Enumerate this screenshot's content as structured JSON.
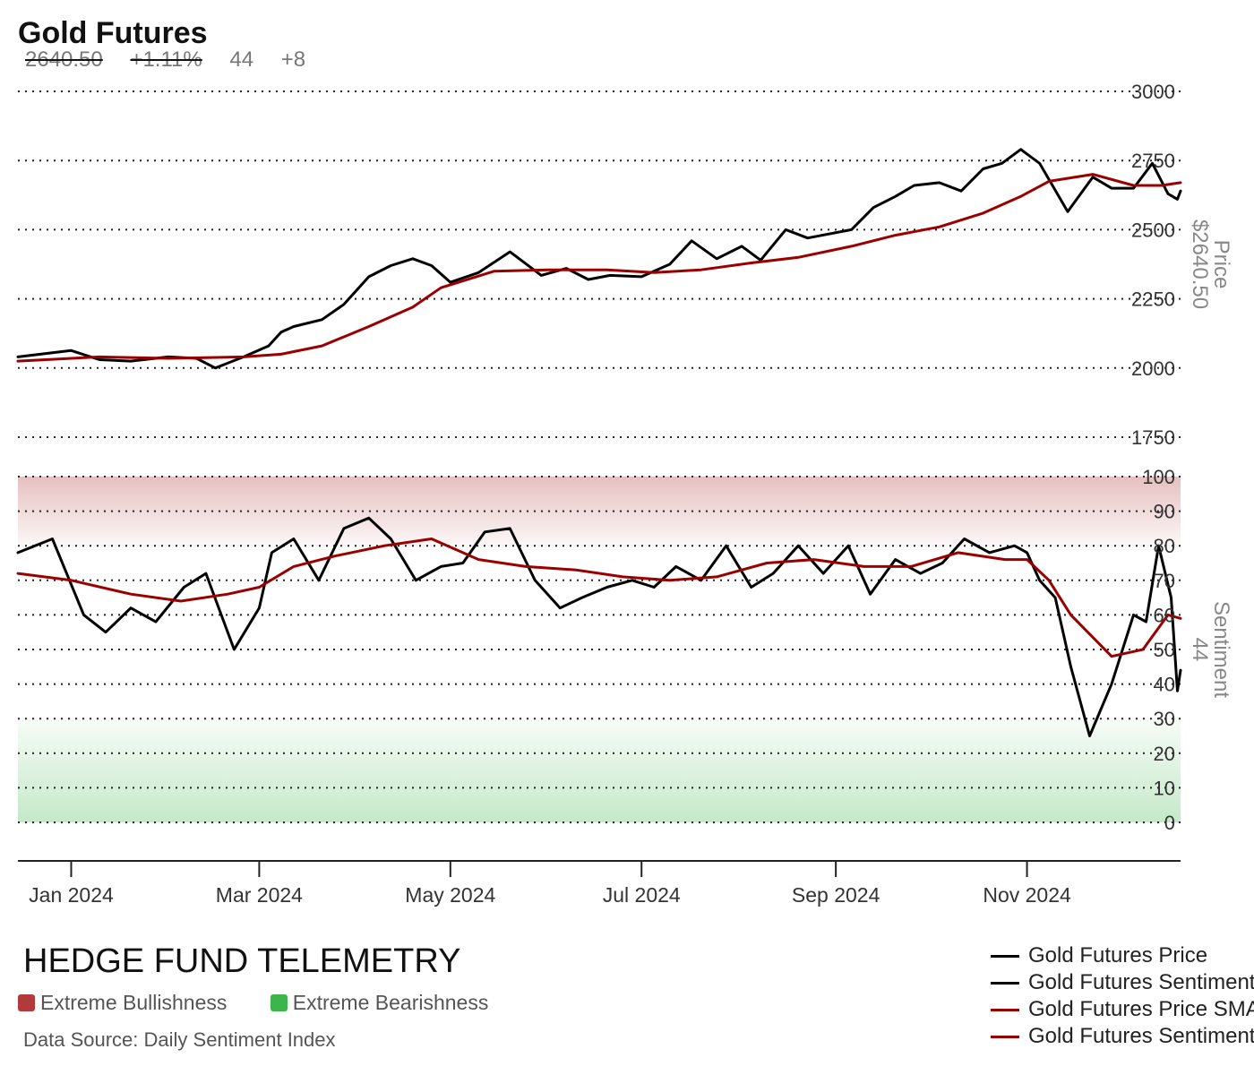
{
  "header": {
    "title": "Gold Futures",
    "price": "2640.50",
    "change_pct": "+1.11%",
    "sentiment": "44",
    "sentiment_change": "+8"
  },
  "footer": {
    "brand": "HEDGE FUND TELEMETRY",
    "bull_label": "Extreme Bullishness",
    "bear_label": "Extreme Bearishness",
    "source": "Data Source: Daily Sentiment Index",
    "bull_color": "#b33a3a",
    "bear_color": "#3cb54a"
  },
  "legend": [
    {
      "name": "Gold Futures Price",
      "color": "#000000"
    },
    {
      "name": "Gold Futures Sentiment",
      "color": "#000000"
    },
    {
      "name": "Gold Futures Price SMA",
      "color": "#9b0000"
    },
    {
      "name": "Gold Futures Sentiment SMA",
      "color": "#9b0000"
    }
  ],
  "chart_data": [
    {
      "type": "line",
      "name": "price-panel",
      "ylabel": "Price",
      "current_value_label": "$2640.50",
      "ylim": [
        1750,
        3000
      ],
      "yticks": [
        3000,
        2750,
        2500,
        2250,
        2000,
        1750
      ],
      "x_range": [
        "2023-12-15",
        "2024-12-20"
      ],
      "grid": true,
      "series": [
        {
          "name": "Gold Futures Price",
          "color": "#000000",
          "x": [
            "2023-12-15",
            "2024-01-01",
            "2024-01-10",
            "2024-01-20",
            "2024-02-01",
            "2024-02-10",
            "2024-02-16",
            "2024-02-25",
            "2024-03-04",
            "2024-03-08",
            "2024-03-12",
            "2024-03-21",
            "2024-03-28",
            "2024-04-05",
            "2024-04-12",
            "2024-04-19",
            "2024-04-25",
            "2024-05-01",
            "2024-05-10",
            "2024-05-20",
            "2024-05-30",
            "2024-06-07",
            "2024-06-14",
            "2024-06-21",
            "2024-07-01",
            "2024-07-10",
            "2024-07-17",
            "2024-07-25",
            "2024-08-02",
            "2024-08-08",
            "2024-08-16",
            "2024-08-23",
            "2024-09-06",
            "2024-09-13",
            "2024-09-20",
            "2024-09-26",
            "2024-10-04",
            "2024-10-11",
            "2024-10-18",
            "2024-10-24",
            "2024-10-30",
            "2024-11-05",
            "2024-11-14",
            "2024-11-22",
            "2024-11-28",
            "2024-12-05",
            "2024-12-11",
            "2024-12-16",
            "2024-12-19",
            "2024-12-20"
          ],
          "y": [
            2040,
            2063,
            2030,
            2025,
            2040,
            2035,
            2000,
            2040,
            2080,
            2130,
            2150,
            2175,
            2230,
            2330,
            2370,
            2395,
            2370,
            2310,
            2345,
            2420,
            2335,
            2360,
            2320,
            2335,
            2330,
            2375,
            2460,
            2395,
            2440,
            2390,
            2500,
            2470,
            2500,
            2580,
            2620,
            2660,
            2670,
            2640,
            2720,
            2740,
            2790,
            2740,
            2565,
            2690,
            2650,
            2650,
            2740,
            2630,
            2610,
            2640
          ]
        },
        {
          "name": "Gold Futures Price SMA",
          "color": "#9b0000",
          "x": [
            "2023-12-15",
            "2024-01-10",
            "2024-02-01",
            "2024-02-25",
            "2024-03-08",
            "2024-03-21",
            "2024-04-05",
            "2024-04-19",
            "2024-04-28",
            "2024-05-15",
            "2024-06-01",
            "2024-06-20",
            "2024-07-05",
            "2024-07-20",
            "2024-08-05",
            "2024-08-20",
            "2024-09-06",
            "2024-09-20",
            "2024-10-04",
            "2024-10-18",
            "2024-10-30",
            "2024-11-08",
            "2024-11-22",
            "2024-12-05",
            "2024-12-14",
            "2024-12-20"
          ],
          "y": [
            2025,
            2040,
            2035,
            2040,
            2050,
            2080,
            2150,
            2220,
            2290,
            2350,
            2355,
            2355,
            2345,
            2355,
            2380,
            2400,
            2440,
            2480,
            2510,
            2560,
            2620,
            2675,
            2700,
            2660,
            2660,
            2670
          ]
        }
      ]
    },
    {
      "type": "line",
      "name": "sentiment-panel",
      "ylabel": "Sentiment",
      "current_value_label": "44",
      "ylim": [
        0,
        100
      ],
      "yticks": [
        100,
        90,
        80,
        70,
        60,
        50,
        40,
        30,
        20,
        10,
        0
      ],
      "x_range": [
        "2023-12-15",
        "2024-12-20"
      ],
      "xticks": [
        "Jan 2024",
        "Mar 2024",
        "May 2024",
        "Jul 2024",
        "Sep 2024",
        "Nov 2024"
      ],
      "grid": true,
      "bands": [
        {
          "label": "Extreme Bullishness",
          "range": [
            80,
            100
          ],
          "color": "#b33a3a"
        },
        {
          "label": "Extreme Bearishness",
          "range": [
            0,
            30
          ],
          "color": "#3cb54a"
        }
      ],
      "series": [
        {
          "name": "Gold Futures Sentiment",
          "color": "#000000",
          "x": [
            "2023-12-15",
            "2023-12-26",
            "2024-01-05",
            "2024-01-12",
            "2024-01-20",
            "2024-01-28",
            "2024-02-06",
            "2024-02-13",
            "2024-02-22",
            "2024-03-01",
            "2024-03-05",
            "2024-03-12",
            "2024-03-20",
            "2024-03-28",
            "2024-04-05",
            "2024-04-12",
            "2024-04-20",
            "2024-04-28",
            "2024-05-05",
            "2024-05-12",
            "2024-05-20",
            "2024-05-28",
            "2024-06-05",
            "2024-06-12",
            "2024-06-20",
            "2024-06-28",
            "2024-07-05",
            "2024-07-12",
            "2024-07-20",
            "2024-07-28",
            "2024-08-05",
            "2024-08-12",
            "2024-08-20",
            "2024-08-28",
            "2024-09-05",
            "2024-09-12",
            "2024-09-20",
            "2024-09-28",
            "2024-10-05",
            "2024-10-12",
            "2024-10-20",
            "2024-10-28",
            "2024-11-01",
            "2024-11-05",
            "2024-11-10",
            "2024-11-15",
            "2024-11-21",
            "2024-11-28",
            "2024-12-05",
            "2024-12-09",
            "2024-12-13",
            "2024-12-17",
            "2024-12-19",
            "2024-12-20"
          ],
          "y": [
            78,
            82,
            60,
            55,
            62,
            58,
            68,
            72,
            50,
            62,
            78,
            82,
            70,
            85,
            88,
            82,
            70,
            74,
            75,
            84,
            85,
            70,
            62,
            65,
            68,
            70,
            68,
            74,
            70,
            80,
            68,
            72,
            80,
            72,
            80,
            66,
            76,
            72,
            75,
            82,
            78,
            80,
            78,
            70,
            65,
            45,
            25,
            40,
            60,
            58,
            80,
            65,
            38,
            44
          ]
        },
        {
          "name": "Gold Futures Sentiment SMA",
          "color": "#9b0000",
          "x": [
            "2023-12-15",
            "2024-01-01",
            "2024-01-20",
            "2024-02-05",
            "2024-02-20",
            "2024-03-01",
            "2024-03-12",
            "2024-03-25",
            "2024-04-10",
            "2024-04-25",
            "2024-05-10",
            "2024-05-25",
            "2024-06-10",
            "2024-06-25",
            "2024-07-10",
            "2024-07-25",
            "2024-08-10",
            "2024-08-25",
            "2024-09-10",
            "2024-09-25",
            "2024-10-10",
            "2024-10-25",
            "2024-11-01",
            "2024-11-08",
            "2024-11-15",
            "2024-11-28",
            "2024-12-08",
            "2024-12-16",
            "2024-12-20"
          ],
          "y": [
            72,
            70,
            66,
            64,
            66,
            68,
            74,
            77,
            80,
            82,
            76,
            74,
            73,
            71,
            70,
            71,
            75,
            76,
            74,
            74,
            78,
            76,
            76,
            70,
            60,
            48,
            50,
            60,
            59
          ]
        }
      ]
    }
  ]
}
